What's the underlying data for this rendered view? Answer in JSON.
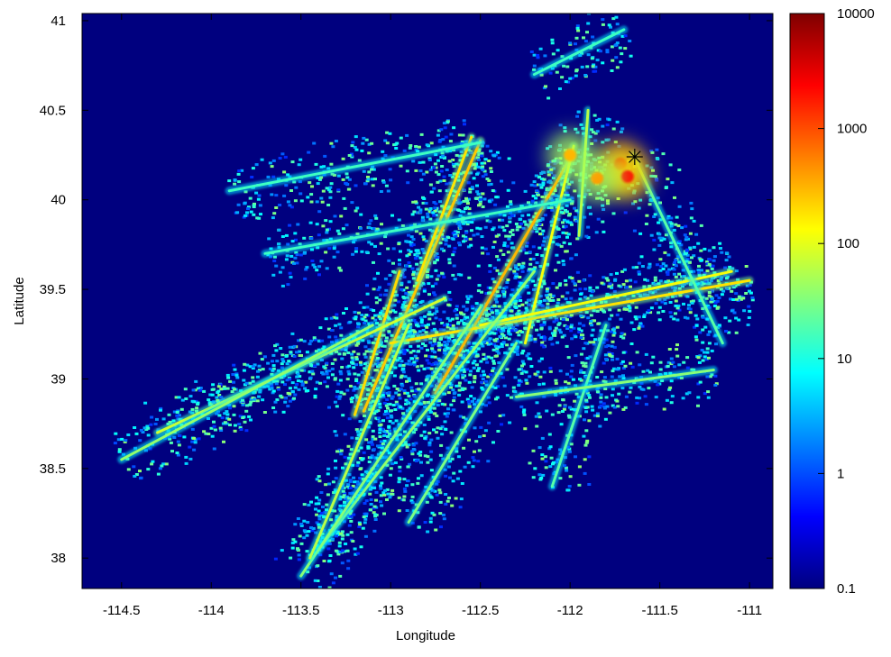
{
  "chart_data": {
    "type": "heatmap",
    "title": "",
    "xlabel": "Longitude",
    "ylabel": "Latitude",
    "xlim": [
      -114.72,
      -110.87
    ],
    "ylim": [
      37.83,
      41.04
    ],
    "x_ticks": [
      -114.5,
      -114,
      -113.5,
      -113,
      -112.5,
      -112,
      -111.5,
      -111
    ],
    "x_tick_labels": [
      "-114.5",
      "-114",
      "-113.5",
      "-113",
      "-112.5",
      "-112",
      "-111.5",
      "-111"
    ],
    "y_ticks": [
      38,
      38.5,
      39,
      39.5,
      40,
      40.5,
      41
    ],
    "y_tick_labels": [
      "38",
      "38.5",
      "39",
      "39.5",
      "40",
      "40.5",
      "41"
    ],
    "colorbar": {
      "scale": "log",
      "range": [
        0.1,
        10000
      ],
      "ticks": [
        0.1,
        1,
        10,
        100,
        1000,
        10000
      ],
      "tick_labels": [
        "0.1",
        "1",
        "10",
        "100",
        "1000",
        "10000"
      ],
      "colormap": "jet"
    },
    "background_color": "#00007f",
    "marker": {
      "x": -111.64,
      "y": 40.24,
      "symbol": "asterisk"
    },
    "hotspots": [
      {
        "x": -111.72,
        "y": 40.2,
        "value": 3000
      },
      {
        "x": -111.68,
        "y": 40.13,
        "value": 2000
      },
      {
        "x": -111.85,
        "y": 40.12,
        "value": 400
      },
      {
        "x": -112.0,
        "y": 40.25,
        "value": 300
      }
    ],
    "tracks": [
      {
        "from": [
          -112.5,
          40.33
        ],
        "to": [
          -113.15,
          38.82
        ],
        "value": 250
      },
      {
        "from": [
          -112.0,
          40.23
        ],
        "to": [
          -112.75,
          38.92
        ],
        "value": 300
      },
      {
        "from": [
          -111.98,
          40.3
        ],
        "to": [
          -112.25,
          39.2
        ],
        "value": 120
      },
      {
        "from": [
          -112.55,
          40.35
        ],
        "to": [
          -112.85,
          39.55
        ],
        "value": 180
      },
      {
        "from": [
          -112.95,
          39.6
        ],
        "to": [
          -113.2,
          38.8
        ],
        "value": 200
      },
      {
        "from": [
          -111.0,
          39.55
        ],
        "to": [
          -113.0,
          39.2
        ],
        "value": 180
      },
      {
        "from": [
          -111.1,
          39.6
        ],
        "to": [
          -112.5,
          39.3
        ],
        "value": 120
      },
      {
        "from": [
          -112.7,
          39.45
        ],
        "to": [
          -114.3,
          38.7
        ],
        "value": 80
      },
      {
        "from": [
          -113.1,
          39.3
        ],
        "to": [
          -114.5,
          38.55
        ],
        "value": 40
      },
      {
        "from": [
          -112.2,
          39.6
        ],
        "to": [
          -113.4,
          38.05
        ],
        "value": 40
      },
      {
        "from": [
          -112.5,
          39.4
        ],
        "to": [
          -113.5,
          37.9
        ],
        "value": 35
      },
      {
        "from": [
          -112.9,
          39.3
        ],
        "to": [
          -113.45,
          38.0
        ],
        "value": 60
      },
      {
        "from": [
          -112.3,
          39.2
        ],
        "to": [
          -112.9,
          38.2
        ],
        "value": 30
      },
      {
        "from": [
          -111.8,
          39.3
        ],
        "to": [
          -112.1,
          38.4
        ],
        "value": 20
      },
      {
        "from": [
          -111.65,
          40.25
        ],
        "to": [
          -111.15,
          39.2
        ],
        "value": 20
      },
      {
        "from": [
          -111.9,
          40.5
        ],
        "to": [
          -111.95,
          39.8
        ],
        "value": 60
      },
      {
        "from": [
          -112.5,
          40.32
        ],
        "to": [
          -113.9,
          40.05
        ],
        "value": 15
      },
      {
        "from": [
          -112.0,
          40.0
        ],
        "to": [
          -113.7,
          39.7
        ],
        "value": 15
      },
      {
        "from": [
          -111.2,
          39.05
        ],
        "to": [
          -112.3,
          38.9
        ],
        "value": 35
      },
      {
        "from": [
          -111.7,
          40.95
        ],
        "to": [
          -112.2,
          40.7
        ],
        "value": 15
      }
    ]
  }
}
